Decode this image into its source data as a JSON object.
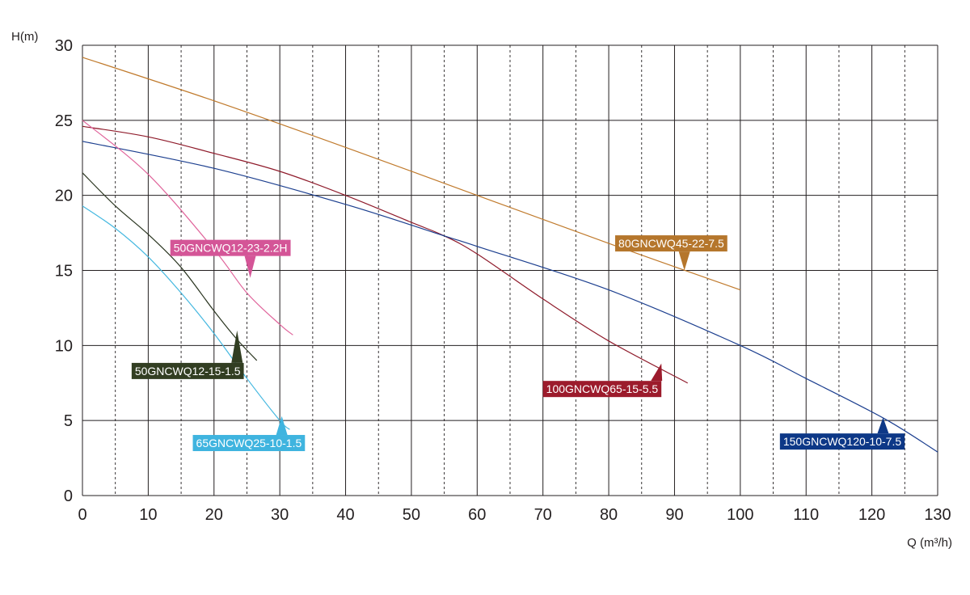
{
  "chart_data": {
    "type": "line",
    "xlabel": "Q (m³/h)",
    "ylabel": "H(m)",
    "xlim": [
      0,
      130
    ],
    "ylim": [
      0,
      30
    ],
    "x_ticks": [
      0,
      10,
      20,
      30,
      40,
      50,
      60,
      70,
      80,
      90,
      100,
      110,
      120,
      130
    ],
    "y_ticks": [
      0,
      5,
      10,
      15,
      20,
      25,
      30
    ],
    "x_minor_dashed": [
      5,
      15,
      25,
      35,
      45,
      55,
      65,
      75,
      85,
      95,
      105,
      115,
      125
    ],
    "grid": true,
    "series": [
      {
        "name": "80GNCWQ45-22-7.5",
        "color": "#c07a2c",
        "label_color": "#b5762c",
        "x": [
          0,
          20,
          40,
          60,
          80,
          100
        ],
        "y": [
          29.2,
          26.3,
          23.2,
          20.0,
          16.8,
          13.7
        ]
      },
      {
        "name": "100GNCWQ65-15-5.5",
        "color": "#8f1b2b",
        "label_color": "#9c1b2c",
        "x": [
          0,
          10,
          20,
          30,
          40,
          50,
          55,
          60,
          70,
          80,
          92
        ],
        "y": [
          24.6,
          23.9,
          22.8,
          21.6,
          20.0,
          18.2,
          17.3,
          16.1,
          13.1,
          10.3,
          7.5
        ]
      },
      {
        "name": "150GNCWQ120-10-7.5",
        "color": "#1c3f8f",
        "label_color": "#0d3887",
        "x": [
          0,
          20,
          40,
          55,
          60,
          80,
          100,
          110,
          122,
          130
        ],
        "y": [
          23.6,
          21.8,
          19.4,
          17.3,
          16.6,
          13.7,
          10.0,
          7.8,
          5.1,
          2.9
        ]
      },
      {
        "name": "50GNCWQ12-23-2.2H",
        "color": "#e0649b",
        "label_color": "#d45597",
        "x": [
          0,
          10,
          20,
          25,
          30,
          32
        ],
        "y": [
          25.0,
          21.4,
          16.4,
          13.5,
          11.4,
          10.7
        ]
      },
      {
        "name": "50GNCWQ12-15-1.5",
        "color": "#2a3520",
        "label_color": "#323e22",
        "x": [
          0,
          5,
          10,
          15,
          20,
          23.5,
          26.5
        ],
        "y": [
          21.5,
          19.3,
          17.4,
          15.2,
          12.3,
          10.4,
          9.0
        ]
      },
      {
        "name": "65GNCWQ25-10-1.5",
        "color": "#45b8e0",
        "label_color": "#3fb4df",
        "x": [
          0,
          5,
          10,
          15,
          20,
          25,
          30,
          31.5
        ],
        "y": [
          19.3,
          17.8,
          15.9,
          13.5,
          10.8,
          7.8,
          5.0,
          4.4
        ]
      }
    ],
    "annotations": [
      {
        "text": "50GNCWQ12-23-2.2H",
        "series": 3,
        "x": 25.5,
        "y": 14.5,
        "label_x": 22.5,
        "label_y": 16.5
      },
      {
        "text": "80GNCWQ45-22-7.5",
        "series": 0,
        "x": 91.5,
        "y": 15.0,
        "label_x": 89.5,
        "label_y": 16.8
      },
      {
        "text": "50GNCWQ12-15-1.5",
        "series": 4,
        "x": 23.5,
        "y": 11.0,
        "label_x": 16.0,
        "label_y": 8.3
      },
      {
        "text": "100GNCWQ65-15-5.5",
        "series": 1,
        "x": 88.0,
        "y": 8.8,
        "label_x": 79.0,
        "label_y": 7.1
      },
      {
        "text": "65GNCWQ25-10-1.5",
        "series": 5,
        "x": 30.3,
        "y": 5.3,
        "label_x": 25.3,
        "label_y": 3.5
      },
      {
        "text": "150GNCWQ120-10-7.5",
        "series": 2,
        "x": 121.7,
        "y": 5.2,
        "label_x": 115.5,
        "label_y": 3.6
      }
    ]
  }
}
